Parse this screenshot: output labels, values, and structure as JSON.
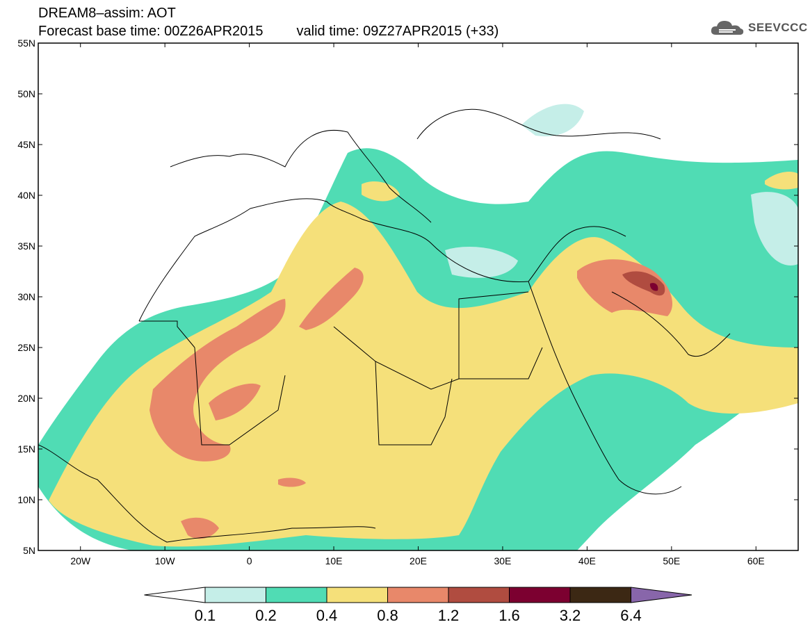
{
  "header": {
    "line1": "DREAM8–assim: AOT",
    "base_time_label": "Forecast base time: 00Z26APR2015",
    "valid_time_label": "valid time: 09Z27APR2015 (+33)"
  },
  "logo": {
    "text": "SEEVCCC",
    "icon": "cloud-icon"
  },
  "map": {
    "lon_range": [
      -25,
      65
    ],
    "lat_range": [
      5,
      55
    ],
    "lat_ticks": [
      "55N",
      "50N",
      "45N",
      "40N",
      "35N",
      "30N",
      "25N",
      "20N",
      "15N",
      "10N",
      "5N"
    ],
    "lon_ticks": [
      "20W",
      "10W",
      "0",
      "10E",
      "20E",
      "30E",
      "40E",
      "50E",
      "60E"
    ]
  },
  "colorbar": {
    "colors": [
      "#ffffff",
      "#c5eee8",
      "#50dcb4",
      "#f5e07a",
      "#e8886a",
      "#b04c40",
      "#7c0030",
      "#3c2814",
      "#8866aa"
    ],
    "labels": [
      "0.1",
      "0.2",
      "0.4",
      "0.8",
      "1.2",
      "1.6",
      "3.2",
      "6.4"
    ]
  }
}
